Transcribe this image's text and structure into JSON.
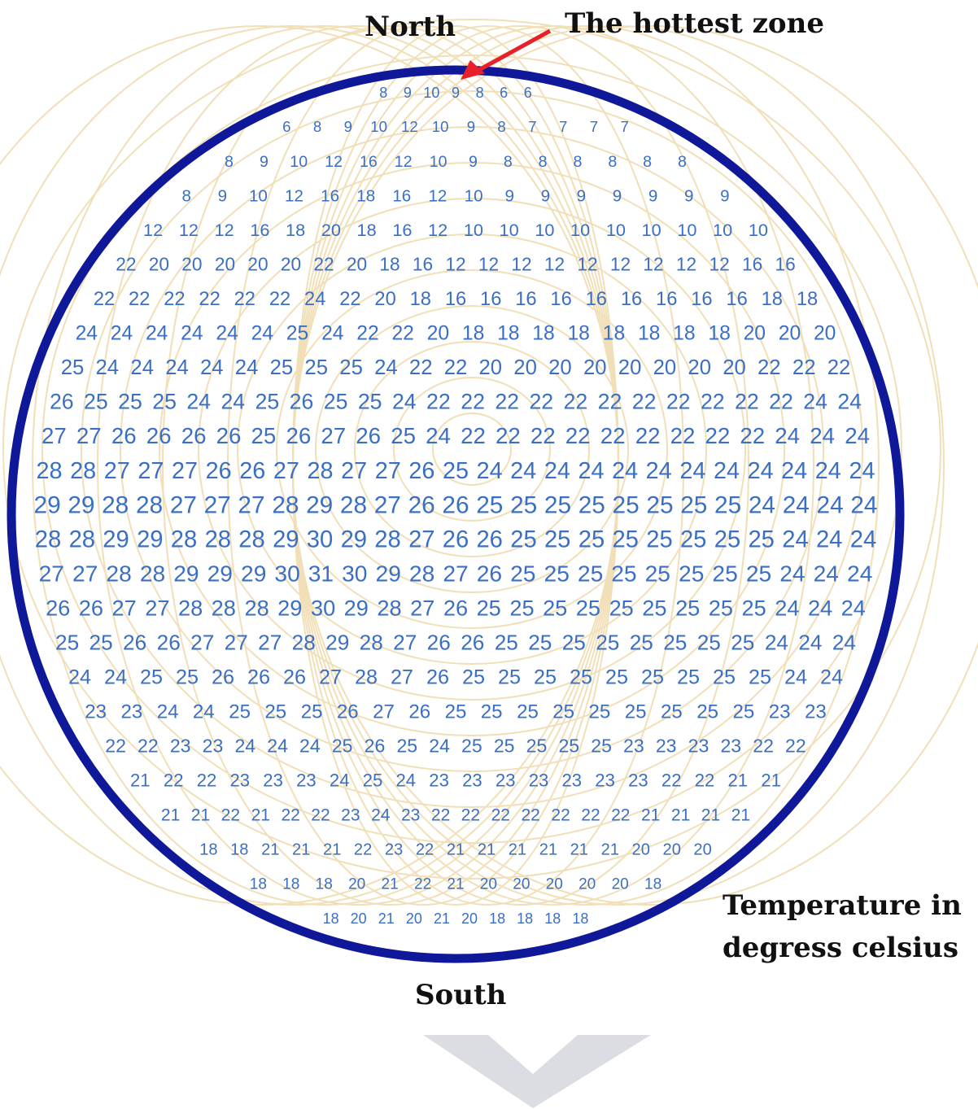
{
  "labels": {
    "north": "North",
    "hottest_zone": "The hottest zone",
    "south": "South",
    "caption": [
      "Temperature in",
      "degress celsius"
    ]
  },
  "rows": [
    [
      8,
      9,
      10,
      9,
      8,
      6,
      6
    ],
    [
      6,
      8,
      9,
      10,
      12,
      10,
      9,
      8,
      7,
      7,
      7,
      7
    ],
    [
      8,
      9,
      10,
      12,
      16,
      12,
      10,
      9,
      8,
      8,
      8,
      8,
      8,
      8
    ],
    [
      8,
      9,
      10,
      12,
      16,
      18,
      16,
      12,
      10,
      9,
      9,
      9,
      9,
      9,
      9,
      9
    ],
    [
      12,
      12,
      12,
      16,
      18,
      20,
      18,
      16,
      12,
      10,
      10,
      10,
      10,
      10,
      10,
      10,
      10,
      10
    ],
    [
      22,
      20,
      20,
      20,
      20,
      20,
      22,
      20,
      18,
      16,
      12,
      12,
      12,
      12,
      12,
      12,
      12,
      12,
      12,
      16,
      16
    ],
    [
      22,
      22,
      22,
      22,
      22,
      22,
      24,
      22,
      20,
      18,
      16,
      16,
      16,
      16,
      16,
      16,
      16,
      16,
      16,
      18,
      18
    ],
    [
      24,
      24,
      24,
      24,
      24,
      24,
      25,
      24,
      22,
      22,
      20,
      18,
      18,
      18,
      18,
      18,
      18,
      18,
      18,
      20,
      20,
      20
    ],
    [
      25,
      24,
      24,
      24,
      24,
      24,
      25,
      25,
      25,
      24,
      22,
      22,
      20,
      20,
      20,
      20,
      20,
      20,
      20,
      20,
      22,
      22,
      22
    ],
    [
      26,
      25,
      25,
      25,
      24,
      24,
      25,
      26,
      25,
      25,
      24,
      22,
      22,
      22,
      22,
      22,
      22,
      22,
      22,
      22,
      22,
      22,
      24,
      24
    ],
    [
      27,
      27,
      26,
      26,
      26,
      26,
      25,
      26,
      27,
      26,
      25,
      24,
      22,
      22,
      22,
      22,
      22,
      22,
      22,
      22,
      22,
      24,
      24,
      24
    ],
    [
      28,
      28,
      27,
      27,
      27,
      26,
      26,
      27,
      28,
      27,
      27,
      26,
      25,
      24,
      24,
      24,
      24,
      24,
      24,
      24,
      24,
      24,
      24,
      24,
      24
    ],
    [
      29,
      29,
      28,
      28,
      27,
      27,
      27,
      28,
      29,
      28,
      27,
      26,
      26,
      25,
      25,
      25,
      25,
      25,
      25,
      25,
      25,
      24,
      24,
      24,
      24
    ],
    [
      28,
      28,
      29,
      29,
      28,
      28,
      28,
      29,
      30,
      29,
      28,
      27,
      26,
      26,
      25,
      25,
      25,
      25,
      25,
      25,
      25,
      25,
      24,
      24,
      24
    ],
    [
      27,
      27,
      28,
      28,
      29,
      29,
      29,
      30,
      31,
      30,
      29,
      28,
      27,
      26,
      25,
      25,
      25,
      25,
      25,
      25,
      25,
      25,
      24,
      24,
      24
    ],
    [
      26,
      26,
      27,
      27,
      28,
      28,
      28,
      29,
      30,
      29,
      28,
      27,
      26,
      25,
      25,
      25,
      25,
      25,
      25,
      25,
      25,
      25,
      24,
      24,
      24
    ],
    [
      25,
      25,
      26,
      26,
      27,
      27,
      27,
      28,
      29,
      28,
      27,
      26,
      26,
      25,
      25,
      25,
      25,
      25,
      25,
      25,
      25,
      24,
      24,
      24
    ],
    [
      24,
      24,
      25,
      25,
      26,
      26,
      26,
      27,
      28,
      27,
      26,
      25,
      25,
      25,
      25,
      25,
      25,
      25,
      25,
      25,
      24,
      24
    ],
    [
      23,
      23,
      24,
      24,
      25,
      25,
      25,
      26,
      27,
      26,
      25,
      25,
      25,
      25,
      25,
      25,
      25,
      25,
      25,
      23,
      23
    ],
    [
      22,
      22,
      23,
      23,
      24,
      24,
      24,
      25,
      26,
      25,
      24,
      25,
      25,
      25,
      25,
      25,
      23,
      23,
      23,
      23,
      22,
      22
    ],
    [
      21,
      22,
      22,
      23,
      23,
      23,
      24,
      25,
      24,
      23,
      23,
      23,
      23,
      23,
      23,
      23,
      22,
      22,
      21,
      21
    ],
    [
      21,
      21,
      22,
      21,
      22,
      22,
      23,
      24,
      23,
      22,
      22,
      22,
      22,
      22,
      22,
      22,
      21,
      21,
      21,
      21
    ],
    [
      18,
      18,
      21,
      21,
      21,
      22,
      23,
      22,
      21,
      21,
      21,
      21,
      21,
      21,
      20,
      20,
      20
    ],
    [
      18,
      18,
      18,
      20,
      21,
      22,
      21,
      20,
      20,
      20,
      20,
      20,
      18
    ],
    [
      18,
      20,
      21,
      20,
      21,
      20,
      18,
      18,
      18,
      18
    ]
  ]
}
